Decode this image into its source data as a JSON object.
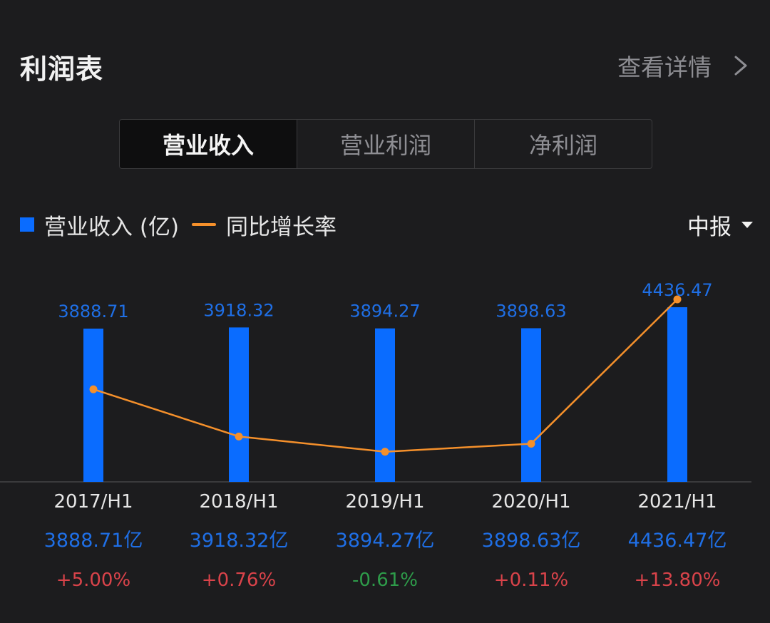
{
  "header": {
    "title": "利润表",
    "more_label": "查看详情"
  },
  "tabs": [
    {
      "label": "营业收入",
      "active": true
    },
    {
      "label": "营业利润",
      "active": false
    },
    {
      "label": "净利润",
      "active": false
    }
  ],
  "legend": {
    "bar_label": "营业收入 (亿)",
    "line_label": "同比增长率"
  },
  "period_selector": {
    "value": "中报"
  },
  "colors": {
    "bar": "#0a6cff",
    "line": "#f5902b",
    "value_text": "#1f6fe6",
    "positive": "#d9434a",
    "negative": "#2e9c4a"
  },
  "chart_data": {
    "type": "bar",
    "title": "营业收入",
    "categories": [
      "2017/H1",
      "2018/H1",
      "2019/H1",
      "2020/H1",
      "2021/H1"
    ],
    "series": [
      {
        "name": "营业收入 (亿)",
        "type": "bar",
        "values": [
          3888.71,
          3918.32,
          3894.27,
          3898.63,
          4436.47
        ]
      },
      {
        "name": "同比增长率",
        "type": "line",
        "unit": "%",
        "values": [
          5.0,
          0.76,
          -0.61,
          0.11,
          13.8
        ]
      }
    ],
    "bar_labels": [
      "3888.71",
      "3918.32",
      "3894.27",
      "3898.63",
      "4436.47"
    ],
    "value_row": [
      "3888.71亿",
      "3918.32亿",
      "3894.27亿",
      "3898.63亿",
      "4436.47亿"
    ],
    "growth_row": [
      "+5.00%",
      "+0.76%",
      "-0.61%",
      "+0.11%",
      "+13.80%"
    ]
  }
}
